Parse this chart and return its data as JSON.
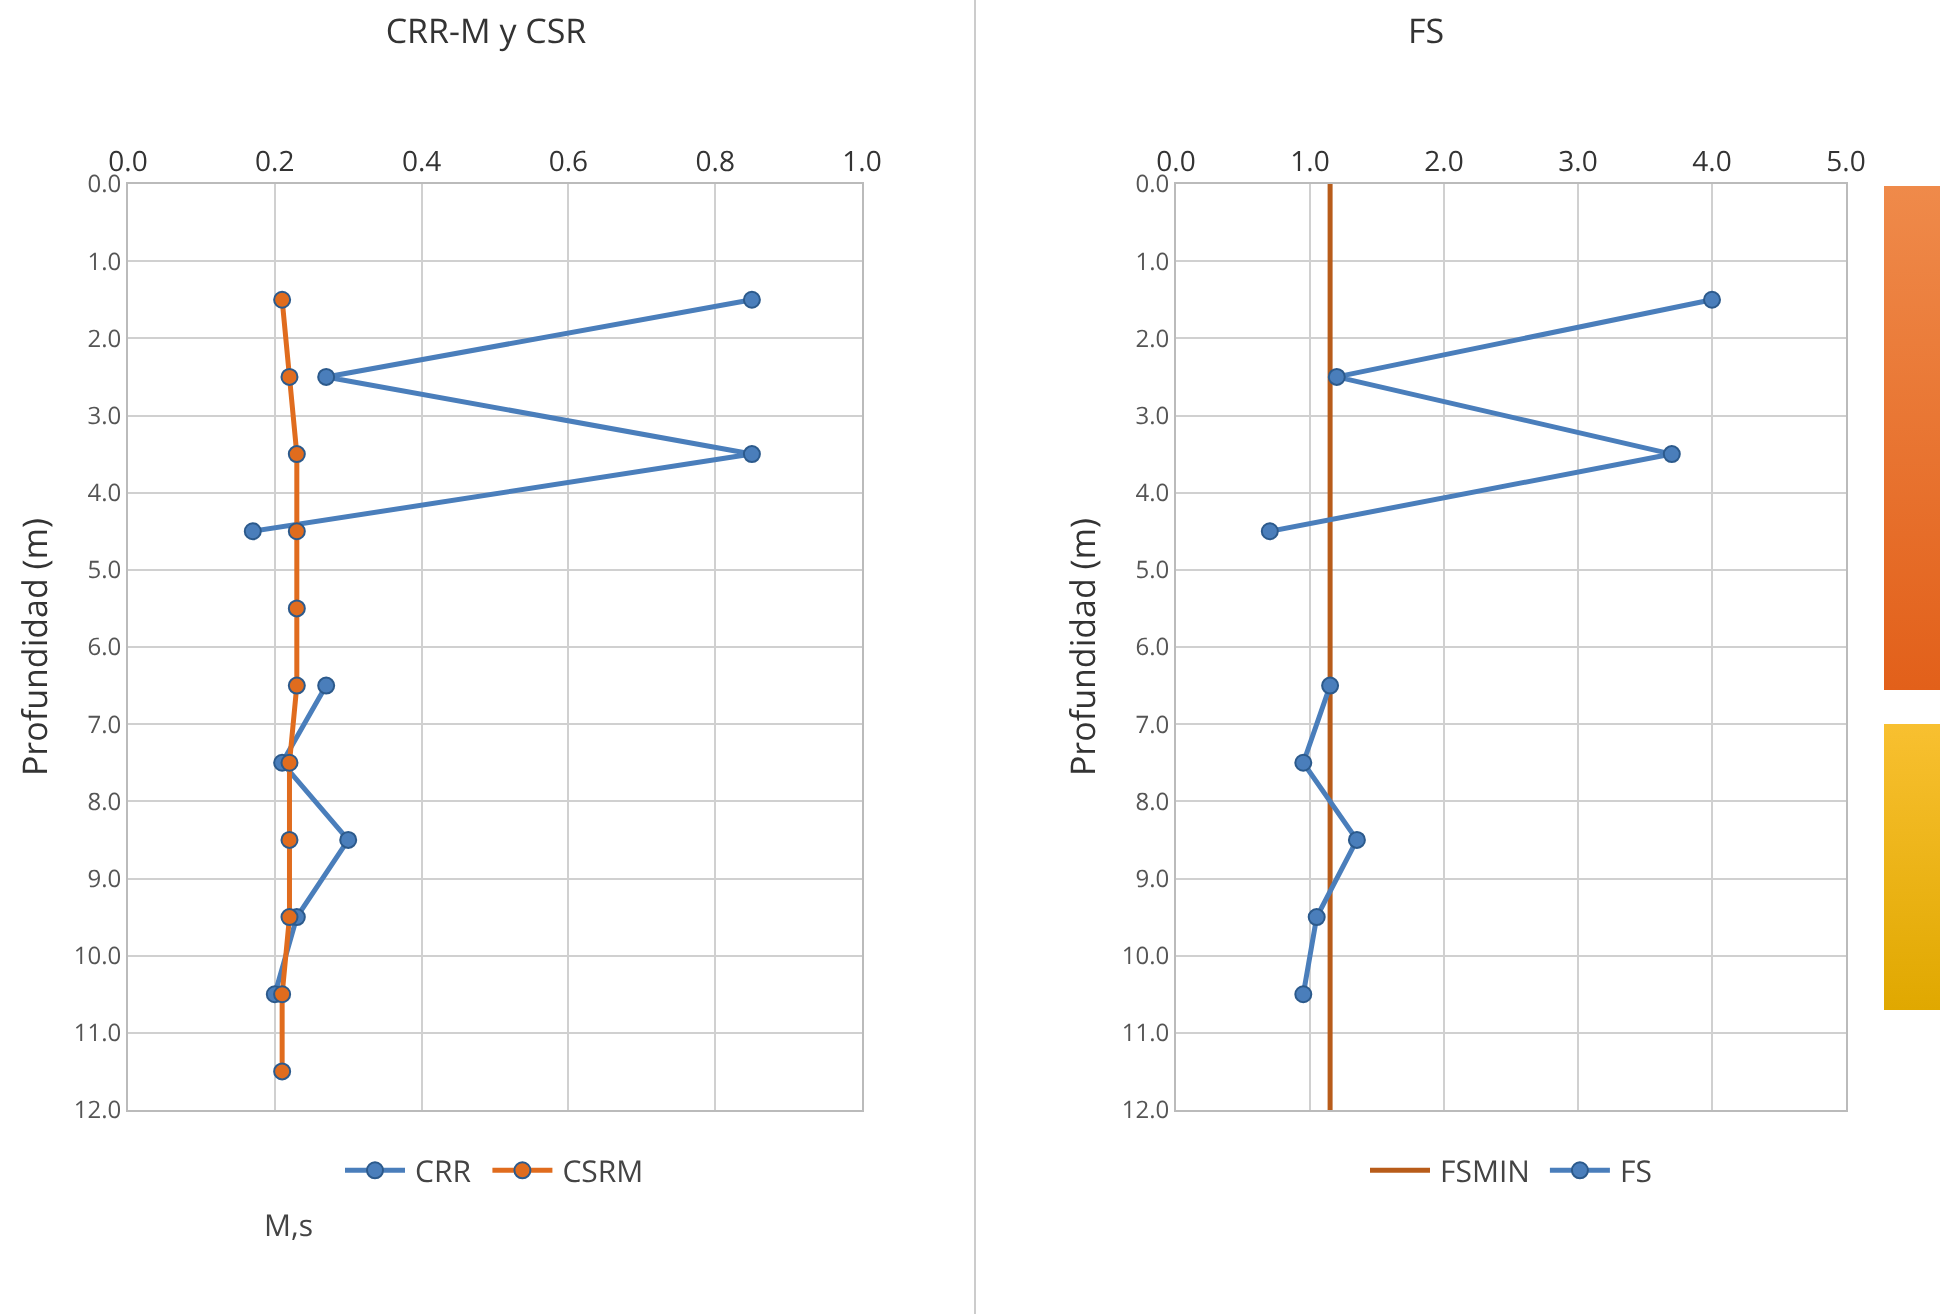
{
  "chart_data": [
    {
      "type": "line",
      "title": "CRR-M y CSR",
      "ylabel": "Profundidad (m)",
      "xlim": [
        0,
        1
      ],
      "ylim": [
        12,
        0
      ],
      "xticks": [
        {
          "value": 0,
          "label": "0.0"
        },
        {
          "value": 0.2,
          "label": "0.2"
        },
        {
          "value": 0.4,
          "label": "0.4"
        },
        {
          "value": 0.6,
          "label": "0.6"
        },
        {
          "value": 0.8,
          "label": "0.8"
        },
        {
          "value": 1,
          "label": "1.0"
        }
      ],
      "yticks": [
        {
          "value": 0,
          "label": "0.0"
        },
        {
          "value": 1,
          "label": "1.0"
        },
        {
          "value": 2,
          "label": "2.0"
        },
        {
          "value": 3,
          "label": "3.0"
        },
        {
          "value": 4,
          "label": "4.0"
        },
        {
          "value": 5,
          "label": "5.0"
        },
        {
          "value": 6,
          "label": "6.0"
        },
        {
          "value": 7,
          "label": "7.0"
        },
        {
          "value": 8,
          "label": "8.0"
        },
        {
          "value": 9,
          "label": "9.0"
        },
        {
          "value": 10,
          "label": "10.0"
        },
        {
          "value": 11,
          "label": "11.0"
        },
        {
          "value": 12,
          "label": "12.0"
        }
      ],
      "grid": true,
      "legend": "bottom",
      "marker": "circle",
      "annotations": [
        "M,s"
      ],
      "series": [
        {
          "name": "CRR",
          "color": "#4a7ebb",
          "x": [
            0.85,
            0.27,
            0.85,
            0.17,
            null,
            0.27,
            0.21,
            0.3,
            0.23,
            0.2
          ],
          "values": [
            1.5,
            2.5,
            3.5,
            4.5,
            null,
            6.5,
            7.5,
            8.5,
            9.5,
            10.5
          ]
        },
        {
          "name": "CSRM",
          "color": "#e06c1e",
          "x": [
            0.21,
            0.22,
            0.23,
            0.23,
            0.23,
            0.23,
            0.22,
            0.22,
            0.22,
            0.21,
            0.21
          ],
          "values": [
            1.5,
            2.5,
            3.5,
            4.5,
            5.5,
            6.5,
            7.5,
            8.5,
            9.5,
            10.5,
            11.5
          ]
        }
      ]
    },
    {
      "type": "line",
      "title": "FS",
      "ylabel": "Profundidad (m)",
      "xlim": [
        0,
        5
      ],
      "ylim": [
        12,
        0
      ],
      "xticks": [
        {
          "value": 0,
          "label": "0.0"
        },
        {
          "value": 1,
          "label": "1.0"
        },
        {
          "value": 2,
          "label": "2.0"
        },
        {
          "value": 3,
          "label": "3.0"
        },
        {
          "value": 4,
          "label": "4.0"
        },
        {
          "value": 5,
          "label": "5.0"
        }
      ],
      "yticks": [
        {
          "value": 0,
          "label": "0.0"
        },
        {
          "value": 1,
          "label": "1.0"
        },
        {
          "value": 2,
          "label": "2.0"
        },
        {
          "value": 3,
          "label": "3.0"
        },
        {
          "value": 4,
          "label": "4.0"
        },
        {
          "value": 5,
          "label": "5.0"
        },
        {
          "value": 6,
          "label": "6.0"
        },
        {
          "value": 7,
          "label": "7.0"
        },
        {
          "value": 8,
          "label": "8.0"
        },
        {
          "value": 9,
          "label": "9.0"
        },
        {
          "value": 10,
          "label": "10.0"
        },
        {
          "value": 11,
          "label": "11.0"
        },
        {
          "value": 12,
          "label": "12.0"
        }
      ],
      "grid": true,
      "legend": "bottom",
      "marker": "circle",
      "series": [
        {
          "name": "FSMIN",
          "color": "#b85c1a",
          "marker": "none",
          "x": [
            1.15,
            1.15
          ],
          "values": [
            0,
            12
          ]
        },
        {
          "name": "FS",
          "color": "#4a7ebb",
          "x": [
            4.0,
            1.2,
            3.7,
            0.7,
            null,
            1.15,
            0.95,
            1.35,
            1.05,
            0.95
          ],
          "values": [
            1.5,
            2.5,
            3.5,
            4.5,
            null,
            6.5,
            7.5,
            8.5,
            9.5,
            10.5
          ]
        }
      ]
    }
  ]
}
